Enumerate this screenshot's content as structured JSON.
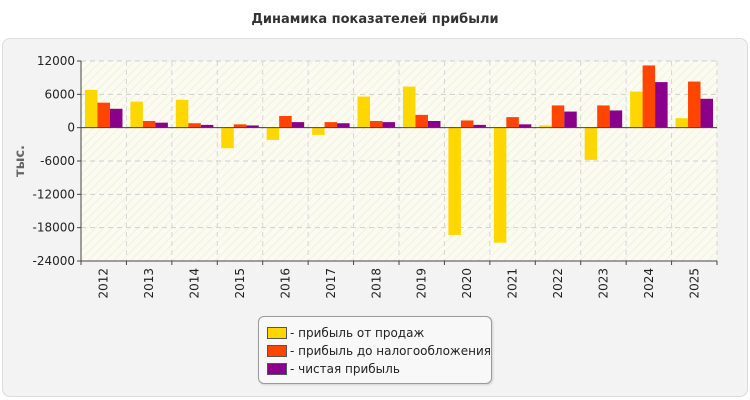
{
  "chart_data": {
    "type": "bar",
    "title": "Динамика показателей прибыли",
    "ylabel": "тыс.",
    "xlabel": "",
    "ylim": [
      -24000,
      12000
    ],
    "yticks": [
      12000,
      6000,
      0,
      -6000,
      -12000,
      -18000,
      -24000
    ],
    "grid": true,
    "legend_position": "bottom",
    "categories": [
      "2012",
      "2013",
      "2014",
      "2015",
      "2016",
      "2017",
      "2018",
      "2019",
      "2020",
      "2021",
      "2022",
      "2023",
      "2024",
      "2025"
    ],
    "series": [
      {
        "name": "прибыль от продаж",
        "color": "#ffd700",
        "values": [
          6800,
          4700,
          5000,
          -3700,
          -2200,
          -1300,
          5600,
          7400,
          -19300,
          -20700,
          400,
          -5800,
          6500,
          1700
        ]
      },
      {
        "name": "прибыль до налогообложения",
        "color": "#ff4500",
        "values": [
          4500,
          1200,
          800,
          600,
          2100,
          1000,
          1200,
          2300,
          1300,
          1900,
          4000,
          4000,
          11200,
          8300
        ]
      },
      {
        "name": "чистая прибыль",
        "color": "#8b008b",
        "values": [
          3400,
          900,
          500,
          400,
          1000,
          800,
          1000,
          1200,
          500,
          600,
          2900,
          3100,
          8200,
          5200
        ]
      }
    ]
  }
}
